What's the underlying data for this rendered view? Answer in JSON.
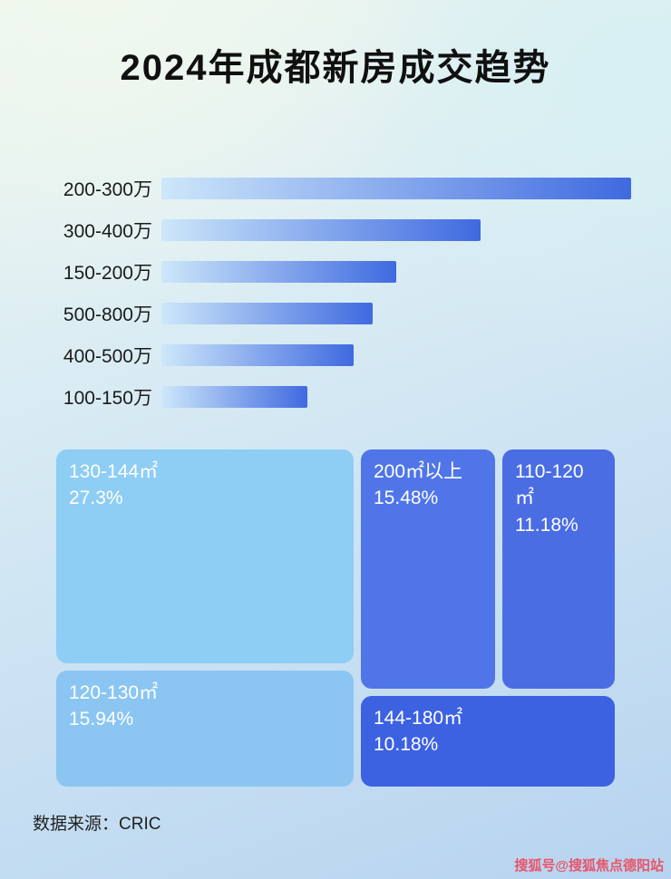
{
  "page": {
    "title": "2024年成都新房成交趋势",
    "footer_source": "数据来源：CRIC",
    "watermark": "搜狐号@搜狐焦点德阳站"
  },
  "colors": {
    "bar_gradient_from": "#cde7fa",
    "bar_gradient_to": "#3f6ae0",
    "watermark_red": "#e8556a",
    "title_text": "#101010",
    "treemap_text": "#ffffff"
  },
  "chart_data": [
    {
      "type": "bar",
      "orientation": "horizontal",
      "title": "2024年成都新房成交趋势",
      "categories": [
        "200-300万",
        "300-400万",
        "150-200万",
        "500-800万",
        "400-500万",
        "100-150万"
      ],
      "values_pct_of_max": [
        100,
        68,
        50,
        45,
        41,
        31
      ],
      "axis_labels_shown": false,
      "legend": "none"
    },
    {
      "type": "treemap",
      "items": [
        {
          "label": "130-144㎡",
          "value": 27.3,
          "pct": "27.3%",
          "color": "#8ecdf4"
        },
        {
          "label": "200㎡以上",
          "value": 15.48,
          "pct": "15.48%",
          "color": "#4f75e8"
        },
        {
          "label": "110-120㎡",
          "value": 11.18,
          "pct": "11.18%",
          "color": "#4a6de4"
        },
        {
          "label": "120-130㎡",
          "value": 15.94,
          "pct": "15.94%",
          "color": "#8ac6f1"
        },
        {
          "label": "144-180㎡",
          "value": 10.18,
          "pct": "10.18%",
          "color": "#3c62e2"
        }
      ],
      "legend": "none"
    }
  ]
}
